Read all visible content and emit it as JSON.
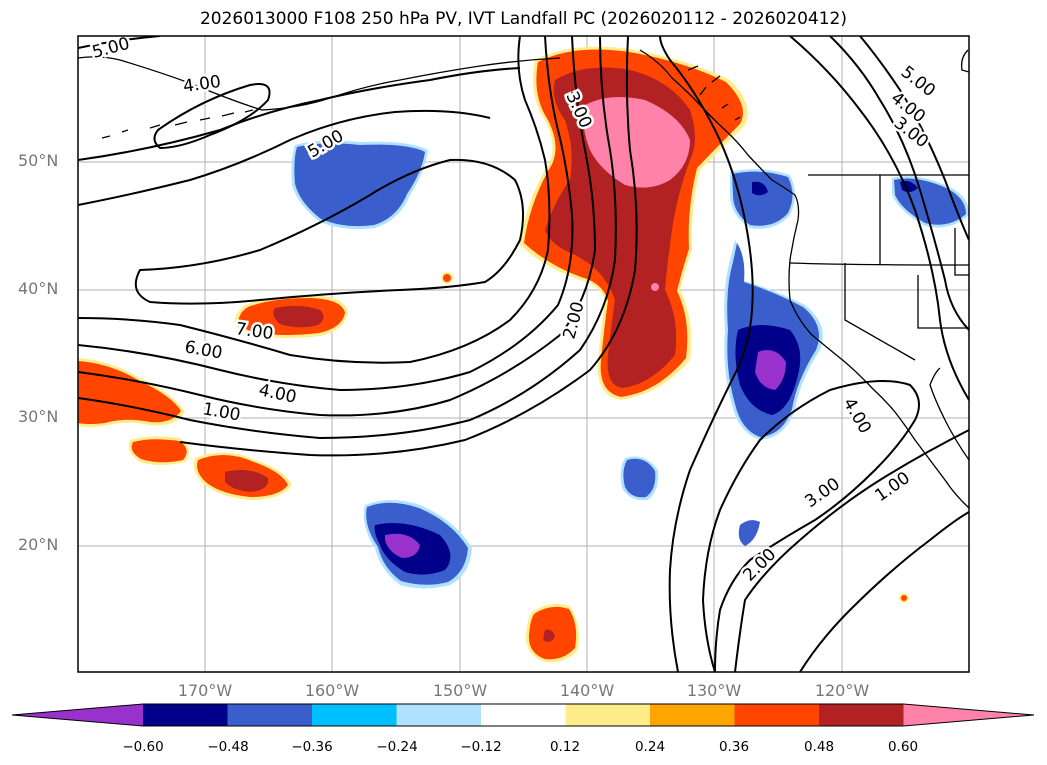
{
  "title": "2026013000 F108 250 hPa PV, IVT Landfall PC (2026020112 - 2026020412)",
  "map": {
    "lat_ticks": [
      {
        "label": "50°N",
        "value": 50
      },
      {
        "label": "40°N",
        "value": 40
      },
      {
        "label": "30°N",
        "value": 30
      },
      {
        "label": "20°N",
        "value": 20
      }
    ],
    "lon_ticks": [
      {
        "label": "170°W",
        "value": -170
      },
      {
        "label": "160°W",
        "value": -160
      },
      {
        "label": "150°W",
        "value": -150
      },
      {
        "label": "140°W",
        "value": -140
      },
      {
        "label": "130°W",
        "value": -130
      },
      {
        "label": "120°W",
        "value": -120
      }
    ],
    "contour_labels": [
      "5.00",
      "4.00",
      "5.00",
      "3.00",
      "5.00",
      "4.00",
      "3.00",
      "7.00",
      "6.00",
      "4.00",
      "1.00",
      "2.00",
      "4.00",
      "3.00",
      "1.00",
      "2.00"
    ],
    "colors": {
      "purple": "#9932cc",
      "navy": "#00008b",
      "blue": "#3a5fcd",
      "cyan": "#00bfff",
      "lightblue": "#b0e2ff",
      "white": "#ffffff",
      "lightyellow": "#ffec8b",
      "orange": "#ffa500",
      "orangered": "#ff4500",
      "firebrick": "#b22222",
      "pink": "#ff82ab"
    }
  },
  "colorbar": {
    "labels": [
      "−0.60",
      "−0.48",
      "−0.36",
      "−0.24",
      "−0.12",
      "0.12",
      "0.24",
      "0.36",
      "0.48",
      "0.60"
    ],
    "colors": [
      "#9932cc",
      "#00008b",
      "#3a5fcd",
      "#00bfff",
      "#b0e2ff",
      "#ffffff",
      "#ffec8b",
      "#ffa500",
      "#ff4500",
      "#b22222",
      "#ff82ab"
    ]
  }
}
